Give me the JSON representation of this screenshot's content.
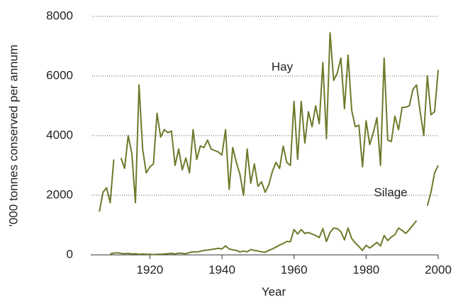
{
  "chart_data": {
    "type": "line",
    "x_label": "Year",
    "y_label": "'000 tonnes conserved per annum",
    "x": [
      1906,
      1907,
      1908,
      1909,
      1910,
      1911,
      1912,
      1913,
      1914,
      1915,
      1916,
      1917,
      1918,
      1919,
      1920,
      1921,
      1922,
      1923,
      1924,
      1925,
      1926,
      1927,
      1928,
      1929,
      1930,
      1931,
      1932,
      1933,
      1934,
      1935,
      1936,
      1937,
      1938,
      1939,
      1940,
      1941,
      1942,
      1943,
      1944,
      1945,
      1946,
      1947,
      1948,
      1949,
      1950,
      1951,
      1952,
      1953,
      1954,
      1955,
      1956,
      1957,
      1958,
      1959,
      1960,
      1961,
      1962,
      1963,
      1964,
      1965,
      1966,
      1967,
      1968,
      1969,
      1970,
      1971,
      1972,
      1973,
      1974,
      1975,
      1976,
      1977,
      1978,
      1979,
      1980,
      1981,
      1982,
      1983,
      1984,
      1985,
      1986,
      1987,
      1988,
      1989,
      1990,
      1991,
      1992,
      1993,
      1994,
      1995,
      1996,
      1997,
      1998,
      1999,
      2000
    ],
    "series": [
      {
        "name": "Hay",
        "color": "#6b7b2b",
        "values": [
          1450,
          2100,
          2250,
          1750,
          3200,
          null,
          3250,
          2900,
          4000,
          3400,
          1750,
          5700,
          3550,
          2750,
          2950,
          3050,
          4750,
          3950,
          4200,
          4100,
          4150,
          3000,
          3550,
          2850,
          3250,
          2750,
          4200,
          3200,
          3650,
          3600,
          3850,
          3550,
          3500,
          3450,
          3350,
          4200,
          2200,
          3600,
          3100,
          2700,
          2000,
          3550,
          2400,
          3050,
          2300,
          2450,
          2100,
          2350,
          2800,
          3100,
          2900,
          3650,
          3100,
          3000,
          5150,
          3200,
          5150,
          3750,
          4800,
          4300,
          5000,
          4400,
          6450,
          3900,
          7450,
          5850,
          6100,
          6600,
          4900,
          6700,
          4850,
          4300,
          4350,
          2950,
          4500,
          3700,
          4100,
          4600,
          3000,
          6600,
          3850,
          3800,
          4650,
          4200,
          4950,
          4950,
          5000,
          5550,
          5700,
          4800,
          4000,
          6000,
          4700,
          4800,
          6200
        ]
      },
      {
        "name": "Silage",
        "color": "#6b7b2b",
        "values": [
          null,
          null,
          null,
          30,
          60,
          70,
          50,
          40,
          50,
          30,
          40,
          20,
          30,
          20,
          20,
          10,
          20,
          20,
          30,
          40,
          50,
          30,
          60,
          50,
          40,
          80,
          100,
          100,
          120,
          150,
          160,
          180,
          200,
          220,
          200,
          300,
          200,
          170,
          150,
          100,
          130,
          100,
          180,
          150,
          130,
          100,
          90,
          150,
          200,
          260,
          330,
          380,
          450,
          440,
          850,
          700,
          850,
          720,
          750,
          700,
          650,
          580,
          880,
          450,
          750,
          900,
          880,
          780,
          500,
          900,
          550,
          400,
          280,
          150,
          320,
          230,
          320,
          420,
          300,
          650,
          480,
          600,
          680,
          900,
          820,
          720,
          850,
          1000,
          1150,
          null,
          null,
          1650,
          2100,
          2750,
          3000
        ]
      }
    ],
    "xlim": [
      1904,
      2000
    ],
    "xticks": [
      1920,
      1940,
      1960,
      1980,
      2000
    ],
    "ylim": [
      0,
      8000
    ],
    "yticks": [
      0,
      2000,
      4000,
      6000,
      8000
    ],
    "grid": true
  }
}
